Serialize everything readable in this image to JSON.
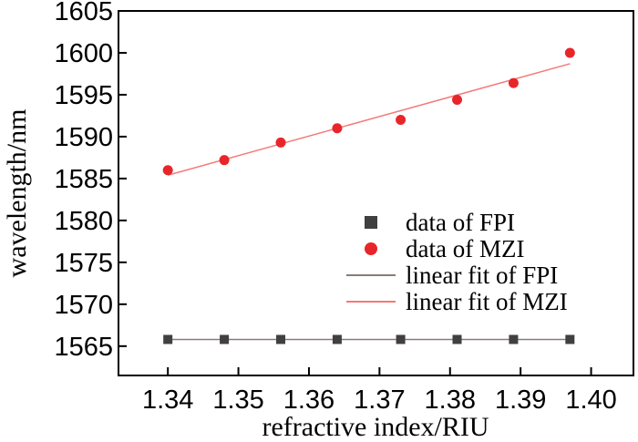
{
  "chart_data": {
    "type": "scatter",
    "xlabel": "refractive index/RIU",
    "ylabel": "wavelength/nm",
    "xlim": [
      1.333,
      1.406
    ],
    "ylim": [
      1561.5,
      1605
    ],
    "x_ticks": [
      "1.34",
      "1.35",
      "1.36",
      "1.37",
      "1.38",
      "1.39",
      "1.40"
    ],
    "y_ticks": [
      "1565",
      "1570",
      "1575",
      "1580",
      "1585",
      "1590",
      "1595",
      "1600",
      "1605"
    ],
    "grid": false,
    "legend_position": "center-right",
    "series": [
      {
        "name": "data of FPI",
        "kind": "points",
        "marker": "square",
        "color": "#404040",
        "x": [
          1.34,
          1.348,
          1.356,
          1.364,
          1.373,
          1.381,
          1.389,
          1.397
        ],
        "y": [
          1565.8,
          1565.8,
          1565.8,
          1565.8,
          1565.8,
          1565.8,
          1565.8,
          1565.8
        ]
      },
      {
        "name": "data of MZI",
        "kind": "points",
        "marker": "circle",
        "color": "#e8262a",
        "x": [
          1.34,
          1.348,
          1.356,
          1.364,
          1.373,
          1.381,
          1.389,
          1.397
        ],
        "y": [
          1586.0,
          1587.2,
          1589.3,
          1591.0,
          1592.0,
          1594.4,
          1596.4,
          1600.0
        ]
      },
      {
        "name": "linear fit of FPI",
        "kind": "line",
        "color": "#8a7b78",
        "x": [
          1.34,
          1.397
        ],
        "y": [
          1565.8,
          1565.8
        ]
      },
      {
        "name": "linear fit of MZI",
        "kind": "line",
        "color": "#f47a78",
        "x": [
          1.34,
          1.397
        ],
        "y": [
          1585.4,
          1598.7
        ]
      }
    ]
  }
}
